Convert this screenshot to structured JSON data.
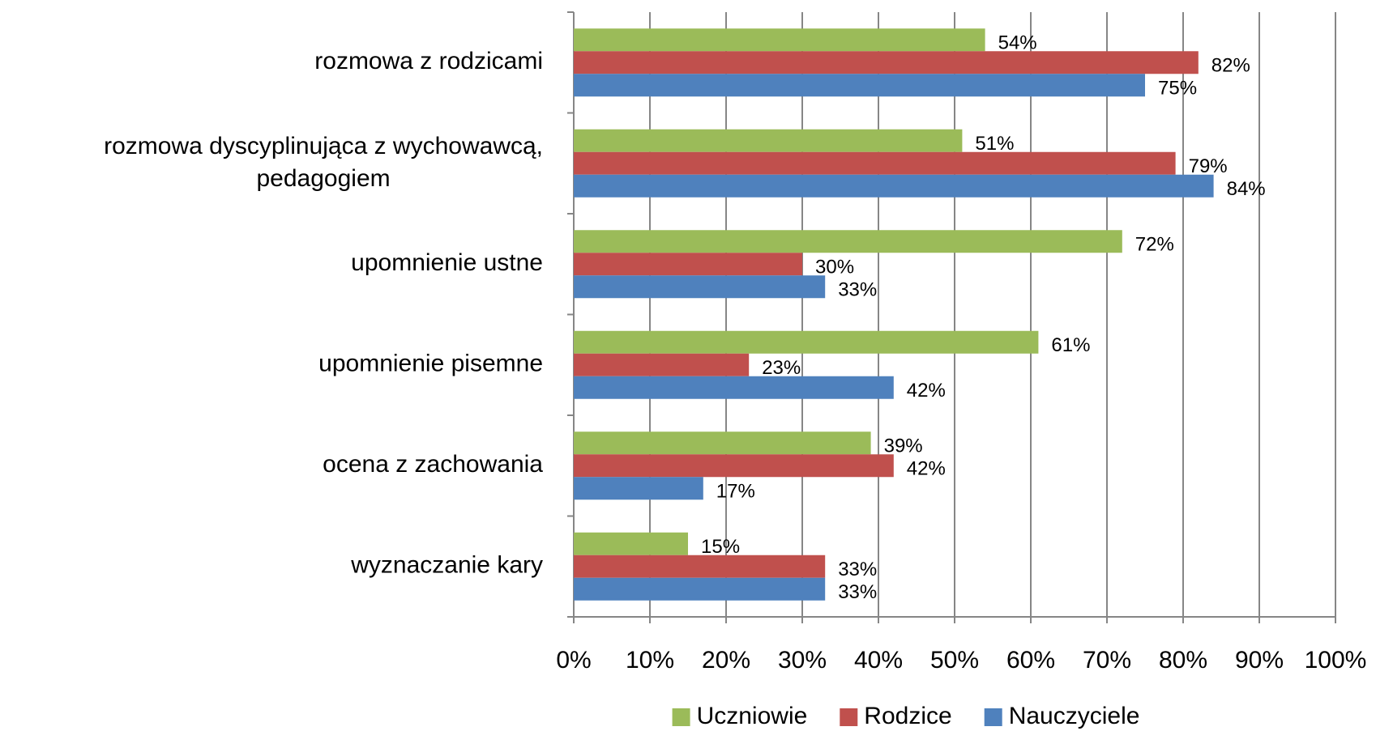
{
  "chart_data": {
    "type": "hbar",
    "categories": [
      "rozmowa z rodzicami",
      "rozmowa dyscyplinująca z wychowawcą, pedagogiem",
      "upomnienie ustne",
      "upomnienie pisemne",
      "ocena z zachowania",
      "wyznaczanie kary"
    ],
    "series": [
      {
        "name": "Uczniowie",
        "color": "#9bbb59",
        "values": [
          54,
          51,
          72,
          61,
          39,
          15
        ],
        "value_labels": [
          "54%",
          "51%",
          "72%",
          "61%",
          "39%",
          "15%"
        ]
      },
      {
        "name": "Rodzice",
        "color": "#c0504d",
        "values": [
          82,
          79,
          30,
          23,
          42,
          33
        ],
        "value_labels": [
          "82%",
          "79%",
          "30%",
          "23%",
          "42%",
          "33%"
        ]
      },
      {
        "name": "Nauczyciele",
        "color": "#4f81bd",
        "values": [
          75,
          84,
          33,
          42,
          17,
          33
        ],
        "value_labels": [
          "75%",
          "84%",
          "33%",
          "42%",
          "17%",
          "33%"
        ]
      }
    ],
    "xlim": [
      0,
      100
    ],
    "xticks": [
      {
        "value": 0,
        "label": "0%"
      },
      {
        "value": 10,
        "label": "10%"
      },
      {
        "value": 20,
        "label": "20%"
      },
      {
        "value": 30,
        "label": "30%"
      },
      {
        "value": 40,
        "label": "40%"
      },
      {
        "value": 50,
        "label": "50%"
      },
      {
        "value": 60,
        "label": "60%"
      },
      {
        "value": 70,
        "label": "70%"
      },
      {
        "value": 80,
        "label": "80%"
      },
      {
        "value": 90,
        "label": "90%"
      },
      {
        "value": 100,
        "label": "100%"
      }
    ],
    "grid": true,
    "legend": "bottom"
  }
}
